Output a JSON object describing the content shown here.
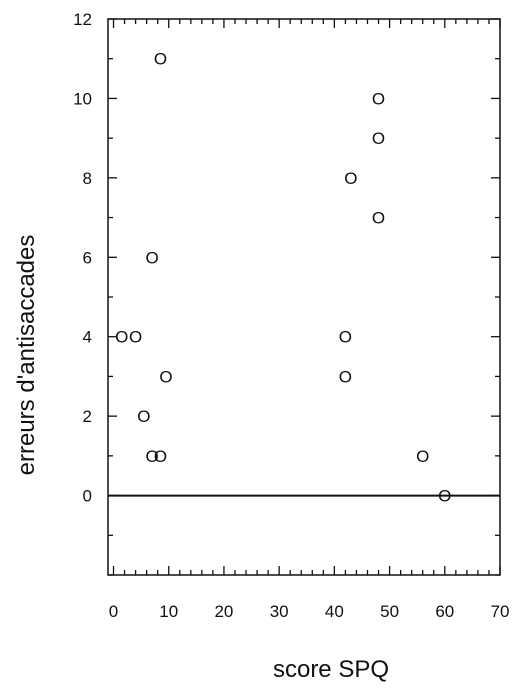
{
  "chart_data": {
    "type": "scatter",
    "title": "",
    "xlabel": "score SPQ",
    "ylabel": "erreurs d'antisaccades",
    "xlim": [
      -1,
      70
    ],
    "ylim": [
      -2,
      12
    ],
    "x_ticks": [
      0,
      10,
      20,
      30,
      40,
      50,
      60,
      70
    ],
    "y_ticks": [
      0,
      2,
      4,
      6,
      8,
      10,
      12
    ],
    "marker_symbol": "O",
    "grid": false,
    "zero_line": true,
    "points": [
      {
        "x": 8.5,
        "y": 11
      },
      {
        "x": 1.5,
        "y": 4
      },
      {
        "x": 4,
        "y": 4
      },
      {
        "x": 7,
        "y": 6
      },
      {
        "x": 9.5,
        "y": 3
      },
      {
        "x": 5.5,
        "y": 2
      },
      {
        "x": 7,
        "y": 1
      },
      {
        "x": 8.5,
        "y": 1
      },
      {
        "x": 48,
        "y": 10
      },
      {
        "x": 48,
        "y": 9
      },
      {
        "x": 43,
        "y": 8
      },
      {
        "x": 48,
        "y": 7
      },
      {
        "x": 42,
        "y": 4
      },
      {
        "x": 42,
        "y": 3
      },
      {
        "x": 56,
        "y": 1
      },
      {
        "x": 60,
        "y": 0
      }
    ]
  }
}
